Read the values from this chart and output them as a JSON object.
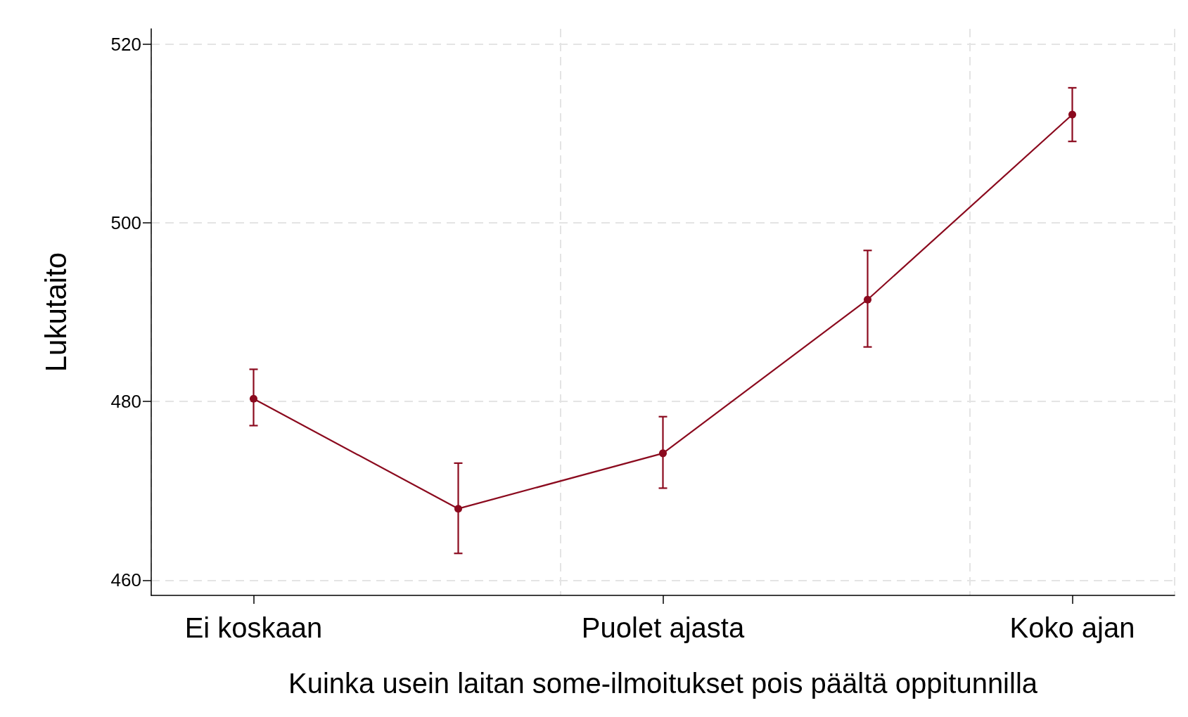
{
  "chart_data": {
    "type": "line",
    "xlabel": "Kuinka usein laitan some-ilmoitukset pois päältä oppitunnilla",
    "ylabel": "Lukutaito",
    "categories": [
      "Ei koskaan",
      null,
      "Puolet ajasta",
      null,
      "Koko ajan"
    ],
    "series": [
      {
        "color": "#8b0a1e",
        "values": [
          480.3,
          468.0,
          474.2,
          491.4,
          512.1
        ],
        "errors": [
          [
            477.3,
            483.6
          ],
          [
            463.0,
            473.1
          ],
          [
            470.3,
            478.3
          ],
          [
            486.1,
            496.9
          ],
          [
            509.1,
            515.1
          ]
        ]
      }
    ],
    "ylim": [
      458.3,
      521.7
    ],
    "yticks": [
      460,
      480,
      500,
      520
    ],
    "grid": true,
    "marker": "circle",
    "line_style": "solid"
  }
}
